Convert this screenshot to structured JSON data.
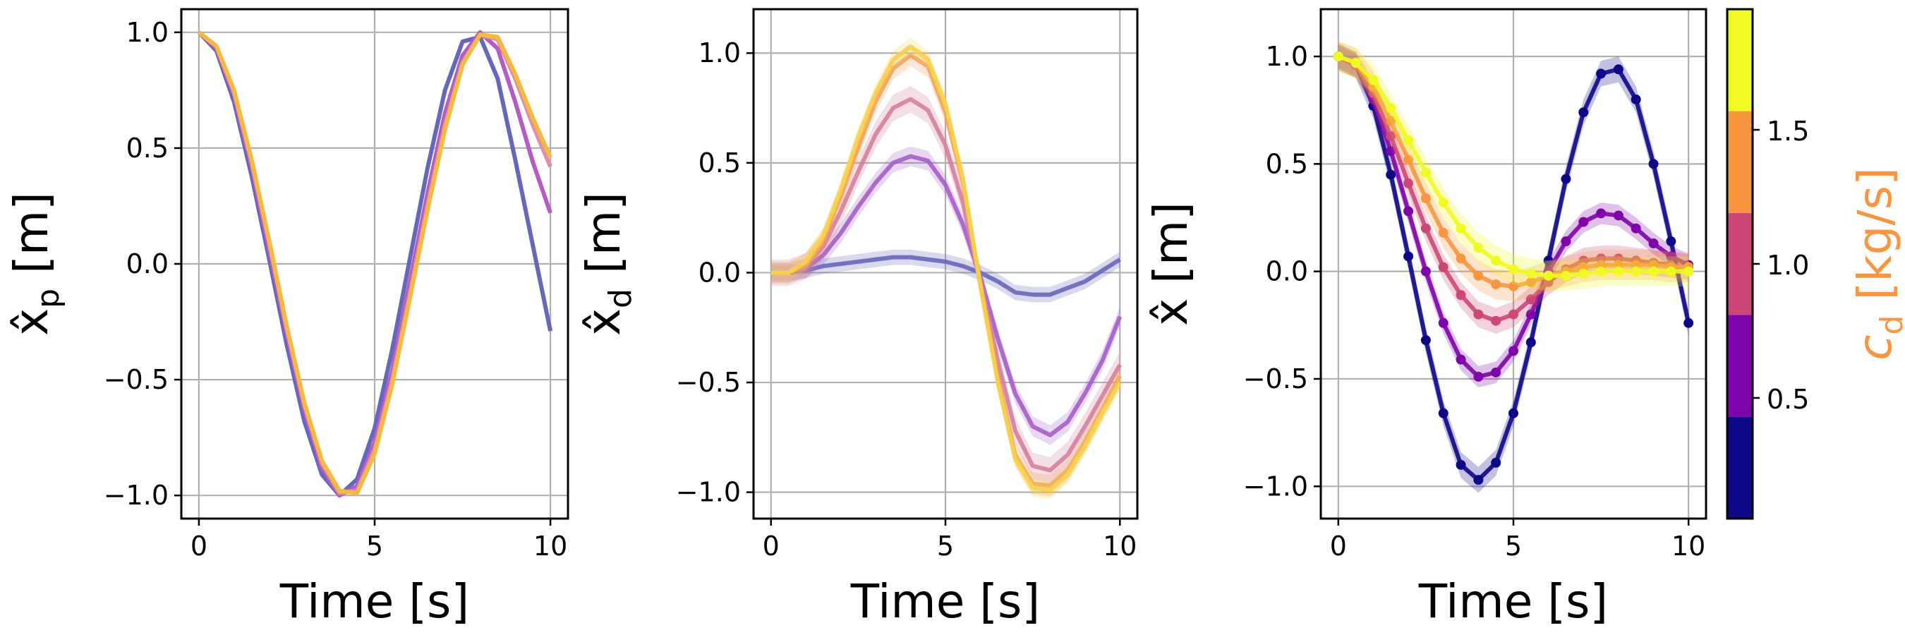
{
  "chart_data": [
    {
      "type": "line",
      "title": "",
      "xlabel": "Time [s]",
      "ylabel_main": "x̂",
      "ylabel_sub": "p",
      "ylabel_unit": "[m]",
      "xlim": [
        -0.5,
        10.5
      ],
      "ylim": [
        -1.1,
        1.1
      ],
      "xticks": [
        0,
        5,
        10
      ],
      "yticks": [
        -1.0,
        -0.5,
        0.0,
        0.5,
        1.0
      ],
      "ytick_labels": [
        "−1.0",
        "−0.5",
        "0.0",
        "0.5",
        "1.0"
      ],
      "grid": true,
      "x": [
        0,
        0.5,
        1,
        1.5,
        2,
        2.5,
        3,
        3.5,
        4,
        4.5,
        5,
        5.5,
        6,
        6.5,
        7,
        7.5,
        8,
        8.5,
        9,
        9.5,
        10
      ],
      "series": [
        {
          "color": "#6666bb",
          "values": [
            1.0,
            0.92,
            0.7,
            0.38,
            0.02,
            -0.35,
            -0.68,
            -0.91,
            -1.0,
            -0.93,
            -0.71,
            -0.37,
            0.02,
            0.41,
            0.75,
            0.96,
            0.98,
            0.8,
            0.45,
            0.08,
            -0.29
          ]
        },
        {
          "color": "#b45cc2",
          "values": [
            1.0,
            0.93,
            0.73,
            0.42,
            0.06,
            -0.3,
            -0.63,
            -0.88,
            -1.0,
            -0.96,
            -0.77,
            -0.46,
            -0.08,
            0.3,
            0.65,
            0.9,
            1.0,
            0.93,
            0.7,
            0.44,
            0.22
          ]
        },
        {
          "color": "#dc8fa9",
          "values": [
            1.0,
            0.94,
            0.74,
            0.44,
            0.09,
            -0.28,
            -0.61,
            -0.86,
            -0.99,
            -0.98,
            -0.8,
            -0.5,
            -0.13,
            0.25,
            0.6,
            0.87,
            0.99,
            0.97,
            0.8,
            0.6,
            0.42
          ]
        },
        {
          "color": "#f5b940",
          "values": [
            1.0,
            0.94,
            0.75,
            0.45,
            0.1,
            -0.27,
            -0.6,
            -0.85,
            -0.98,
            -0.99,
            -0.82,
            -0.52,
            -0.15,
            0.23,
            0.58,
            0.86,
            0.99,
            0.98,
            0.82,
            0.63,
            0.46
          ]
        }
      ]
    },
    {
      "type": "line",
      "title": "",
      "xlabel": "Time [s]",
      "ylabel_main": "x̂",
      "ylabel_sub": "d",
      "ylabel_unit": "[m]",
      "xlim": [
        -0.5,
        10.5
      ],
      "ylim": [
        -1.12,
        1.2
      ],
      "xticks": [
        0,
        5,
        10
      ],
      "yticks": [
        -1.0,
        -0.5,
        0.0,
        0.5,
        1.0
      ],
      "ytick_labels": [
        "−1.0",
        "−0.5",
        "0.0",
        "0.5",
        "1.0"
      ],
      "grid": true,
      "x": [
        0,
        0.5,
        1,
        1.5,
        2,
        2.5,
        3,
        3.5,
        4,
        4.5,
        5,
        5.5,
        6,
        6.5,
        7,
        7.5,
        8,
        8.5,
        9,
        9.5,
        10
      ],
      "series": [
        {
          "color": "#6666bb",
          "values": [
            0.0,
            0.0,
            0.01,
            0.03,
            0.04,
            0.05,
            0.06,
            0.07,
            0.07,
            0.06,
            0.05,
            0.03,
            0.0,
            -0.04,
            -0.09,
            -0.1,
            -0.1,
            -0.07,
            -0.04,
            0.01,
            0.06
          ],
          "band": 0.035
        },
        {
          "color": "#a45ec8",
          "values": [
            0.0,
            0.0,
            0.02,
            0.08,
            0.18,
            0.3,
            0.41,
            0.5,
            0.53,
            0.51,
            0.4,
            0.22,
            -0.02,
            -0.3,
            -0.55,
            -0.7,
            -0.74,
            -0.68,
            -0.55,
            -0.4,
            -0.2
          ],
          "band": 0.045
        },
        {
          "color": "#d5809d",
          "values": [
            0.0,
            0.0,
            0.03,
            0.12,
            0.28,
            0.46,
            0.63,
            0.75,
            0.79,
            0.74,
            0.58,
            0.32,
            -0.04,
            -0.4,
            -0.72,
            -0.88,
            -0.9,
            -0.83,
            -0.7,
            -0.56,
            -0.42
          ],
          "band": 0.06
        },
        {
          "color": "#f2a05c",
          "values": [
            0.0,
            0.0,
            0.04,
            0.15,
            0.35,
            0.57,
            0.78,
            0.93,
            0.99,
            0.94,
            0.73,
            0.41,
            -0.05,
            -0.48,
            -0.83,
            -0.96,
            -0.97,
            -0.9,
            -0.77,
            -0.62,
            -0.47
          ],
          "band": 0.05
        },
        {
          "color": "#f7d24a",
          "values": [
            0.0,
            0.0,
            0.05,
            0.17,
            0.38,
            0.62,
            0.82,
            0.97,
            1.03,
            0.97,
            0.77,
            0.43,
            -0.06,
            -0.5,
            -0.85,
            -0.98,
            -0.99,
            -0.92,
            -0.79,
            -0.64,
            -0.5
          ],
          "band": 0.04
        }
      ]
    },
    {
      "type": "line",
      "title": "",
      "xlabel": "Time [s]",
      "ylabel_main": "x̂",
      "ylabel_sub": "",
      "ylabel_unit": "[m]",
      "xlim": [
        -0.5,
        10.5
      ],
      "ylim": [
        -1.15,
        1.22
      ],
      "xticks": [
        0,
        5,
        10
      ],
      "yticks": [
        -1.0,
        -0.5,
        0.0,
        0.5,
        1.0
      ],
      "ytick_labels": [
        "−1.0",
        "−0.5",
        "0.0",
        "0.5",
        "1.0"
      ],
      "grid": true,
      "x": [
        0,
        0.5,
        1,
        1.5,
        2,
        2.5,
        3,
        3.5,
        4,
        4.5,
        5,
        5.5,
        6,
        6.5,
        7,
        7.5,
        8,
        8.5,
        9,
        9.5,
        10
      ],
      "series": [
        {
          "color": "#0d0887",
          "values": [
            1.0,
            0.96,
            0.77,
            0.45,
            0.07,
            -0.32,
            -0.66,
            -0.9,
            -0.97,
            -0.89,
            -0.66,
            -0.33,
            0.05,
            0.43,
            0.74,
            0.92,
            0.94,
            0.8,
            0.5,
            0.14,
            -0.24
          ],
          "band": 0.06,
          "markers": true
        },
        {
          "color": "#7e03a8",
          "values": [
            1.0,
            0.96,
            0.8,
            0.56,
            0.28,
            0.0,
            -0.24,
            -0.41,
            -0.49,
            -0.47,
            -0.37,
            -0.2,
            0.0,
            0.14,
            0.23,
            0.27,
            0.26,
            0.2,
            0.13,
            0.07,
            0.03
          ],
          "band": 0.05,
          "markers": true
        },
        {
          "color": "#cc4778",
          "values": [
            1.0,
            0.96,
            0.83,
            0.63,
            0.41,
            0.2,
            0.02,
            -0.11,
            -0.2,
            -0.23,
            -0.2,
            -0.13,
            -0.05,
            0.01,
            0.05,
            0.06,
            0.06,
            0.05,
            0.04,
            0.03,
            0.02
          ],
          "band": 0.06,
          "markers": true
        },
        {
          "color": "#f89540",
          "values": [
            1.0,
            0.97,
            0.86,
            0.7,
            0.52,
            0.34,
            0.18,
            0.06,
            -0.02,
            -0.06,
            -0.07,
            -0.05,
            -0.02,
            0.0,
            0.02,
            0.03,
            0.03,
            0.03,
            0.03,
            0.02,
            0.02
          ],
          "band": 0.07,
          "markers": true
        },
        {
          "color": "#f0f921",
          "values": [
            1.0,
            0.97,
            0.89,
            0.76,
            0.61,
            0.46,
            0.32,
            0.2,
            0.11,
            0.05,
            0.01,
            -0.01,
            -0.02,
            -0.02,
            -0.01,
            0.0,
            0.0,
            0.0,
            0.0,
            0.0,
            0.0
          ],
          "band": 0.07,
          "markers": true
        }
      ]
    }
  ],
  "colorbar": {
    "label_main": "c",
    "label_sub": "d",
    "label_unit": "[kg/s]",
    "label_color": "#f89540",
    "range": [
      0.05,
      1.95
    ],
    "ticks": [
      0.5,
      1.0,
      1.5
    ],
    "tick_labels": [
      "0.5",
      "1.0",
      "1.5"
    ],
    "segments": [
      {
        "from": 0.05,
        "to": 0.43,
        "color": "#0d0887"
      },
      {
        "from": 0.43,
        "to": 0.81,
        "color": "#7e03a8"
      },
      {
        "from": 0.81,
        "to": 1.19,
        "color": "#cc4778"
      },
      {
        "from": 1.19,
        "to": 1.57,
        "color": "#f89540"
      },
      {
        "from": 1.57,
        "to": 1.95,
        "color": "#f0f921"
      }
    ]
  }
}
